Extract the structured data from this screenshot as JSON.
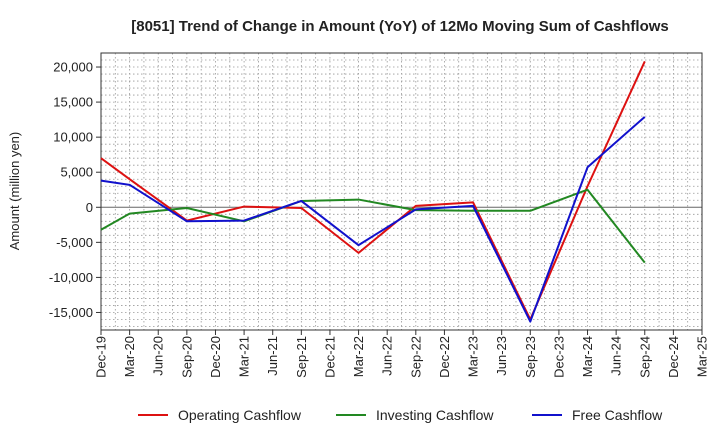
{
  "chart_data": {
    "type": "line",
    "title": "[8051]  Trend of Change in Amount (YoY) of 12Mo Moving Sum of Cashflows",
    "xlabel": "",
    "ylabel": "Amount (million yen)",
    "ylim": [
      -17500,
      22000
    ],
    "yticks": [
      20000,
      15000,
      10000,
      5000,
      0,
      -5000,
      -10000,
      -15000
    ],
    "ytick_labels": [
      "20,000",
      "15,000",
      "10,000",
      "5,000",
      "0",
      "-5,000",
      "-10,000",
      "-15,000"
    ],
    "categories": [
      "Dec-19",
      "Mar-20",
      "Jun-20",
      "Sep-20",
      "Dec-20",
      "Mar-21",
      "Jun-21",
      "Sep-21",
      "Dec-21",
      "Mar-22",
      "Jun-22",
      "Sep-22",
      "Dec-22",
      "Mar-23",
      "Jun-23",
      "Sep-23",
      "Dec-23",
      "Mar-24",
      "Jun-24",
      "Sep-24",
      "Dec-24",
      "Mar-25"
    ],
    "grid": true,
    "legend_position": "bottom",
    "series": [
      {
        "name": "Operating Cashflow",
        "color": "#dd1111",
        "values": [
          7000,
          4000,
          null,
          -1900,
          null,
          100,
          null,
          -100,
          null,
          -6500,
          null,
          200,
          null,
          700,
          null,
          -16000,
          null,
          3000,
          null,
          20800,
          null,
          null
        ]
      },
      {
        "name": "Investing Cashflow",
        "color": "#228822",
        "values": [
          -3200,
          -900,
          null,
          -100,
          null,
          -2000,
          null,
          900,
          null,
          1100,
          null,
          -400,
          null,
          -500,
          null,
          -500,
          null,
          2500,
          null,
          -7900,
          null,
          null
        ]
      },
      {
        "name": "Free Cashflow",
        "color": "#1111cc",
        "values": [
          3800,
          3200,
          null,
          -2000,
          null,
          -1900,
          null,
          900,
          null,
          -5400,
          null,
          -300,
          null,
          200,
          null,
          -16300,
          null,
          5700,
          null,
          12900,
          null,
          null
        ]
      }
    ]
  }
}
